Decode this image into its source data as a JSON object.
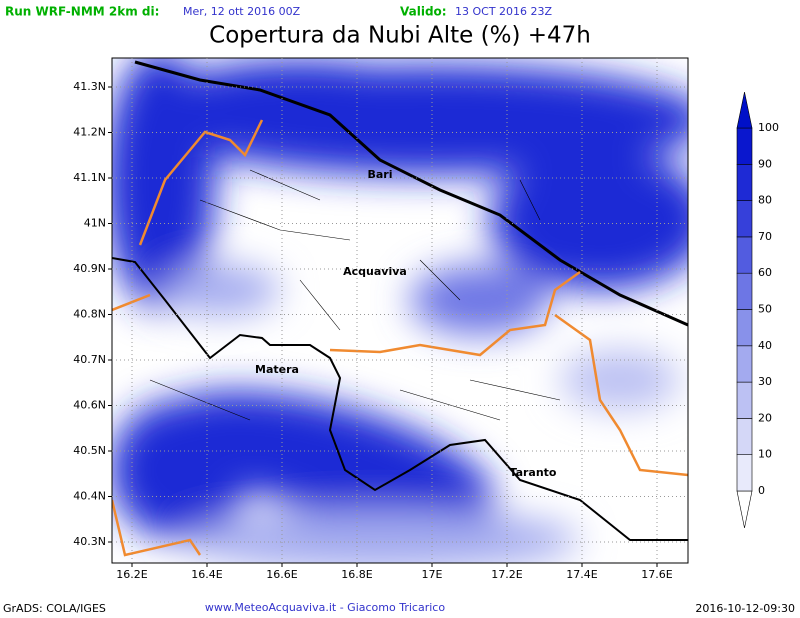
{
  "header": {
    "run_label": "Run WRF-NMM 2km di:",
    "run_date": "Mer, 12 ott 2016 00Z",
    "valid_label": "Valido:",
    "valid_date": "13 OCT 2016 23Z"
  },
  "title": "Copertura da Nubi Alte (%) +47h",
  "map": {
    "lat_ticks": [
      {
        "value": 41.3,
        "label": "41.3N"
      },
      {
        "value": 41.2,
        "label": "41.2N"
      },
      {
        "value": 41.1,
        "label": "41.1N"
      },
      {
        "value": 41.0,
        "label": "41N"
      },
      {
        "value": 40.9,
        "label": "40.9N"
      },
      {
        "value": 40.8,
        "label": "40.8N"
      },
      {
        "value": 40.7,
        "label": "40.7N"
      },
      {
        "value": 40.6,
        "label": "40.6N"
      },
      {
        "value": 40.5,
        "label": "40.5N"
      },
      {
        "value": 40.4,
        "label": "40.4N"
      },
      {
        "value": 40.3,
        "label": "40.3N"
      }
    ],
    "lon_ticks": [
      {
        "value": 16.2,
        "label": "16.2E"
      },
      {
        "value": 16.4,
        "label": "16.4E"
      },
      {
        "value": 16.6,
        "label": "16.6E"
      },
      {
        "value": 16.8,
        "label": "16.8E"
      },
      {
        "value": 17.0,
        "label": "17E"
      },
      {
        "value": 17.2,
        "label": "17.2E"
      },
      {
        "value": 17.4,
        "label": "17.4E"
      },
      {
        "value": 17.6,
        "label": "17.6E"
      }
    ],
    "cities": [
      "Bari",
      "Acquaviva",
      "Matera",
      "Taranto"
    ]
  },
  "colorbar": {
    "levels": [
      0,
      10,
      20,
      30,
      40,
      50,
      60,
      70,
      80,
      90,
      100
    ],
    "colors": [
      "#ffffff",
      "#e8eafb",
      "#d4d7f7",
      "#bcc1f3",
      "#a3aaef",
      "#8891ea",
      "#6d76e5",
      "#525ce0",
      "#3640da",
      "#1e2ad5",
      "#0a17ce",
      "#0010c8"
    ]
  },
  "footer": {
    "left": "GrADS: COLA/IGES",
    "center": "www.MeteoAcquaviva.it  -  Giacomo Tricarico",
    "right": "2016-10-12-09:30"
  }
}
